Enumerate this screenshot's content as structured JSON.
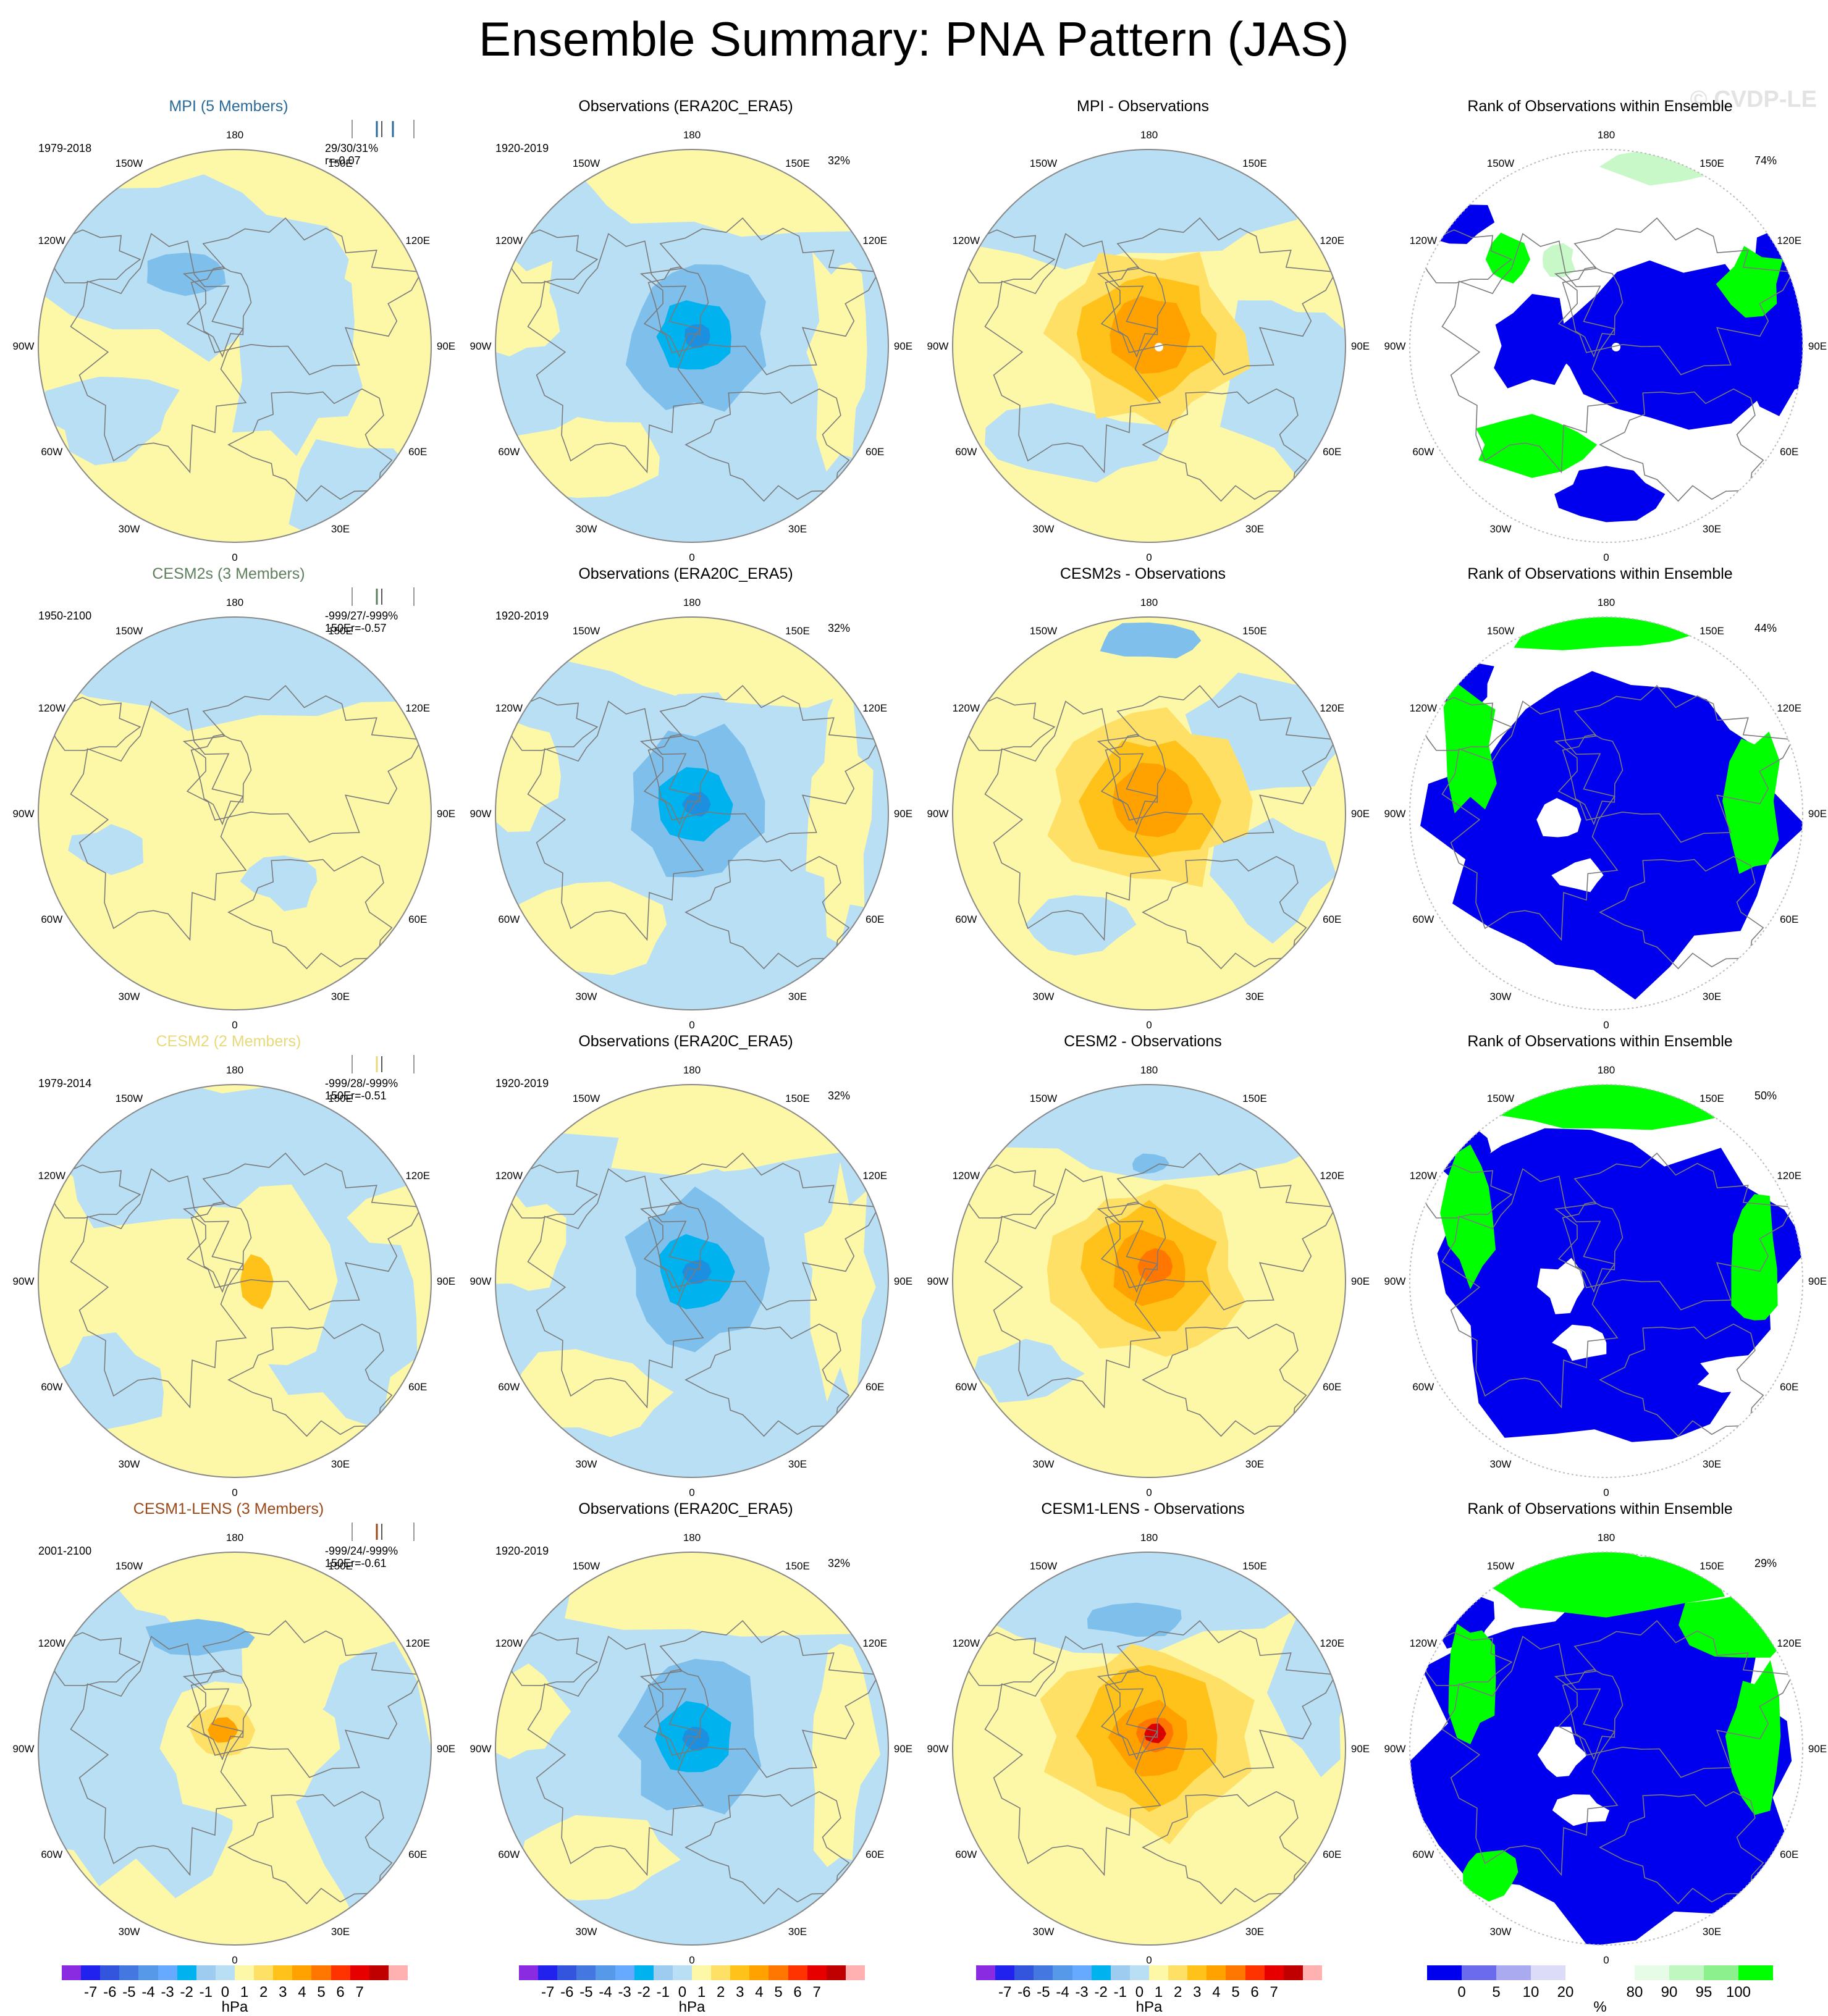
{
  "title": "Ensemble Summary: PNA Pattern (JAS)",
  "watermark": "© CVDP-LE",
  "lon_labels": [
    {
      "lon": "180",
      "text": "180"
    },
    {
      "lon": "150W",
      "text": "150W"
    },
    {
      "lon": "120W",
      "text": "120W"
    },
    {
      "lon": "90W",
      "text": "90W"
    },
    {
      "lon": "60W",
      "text": "60W"
    },
    {
      "lon": "30W",
      "text": "30W"
    },
    {
      "lon": "0",
      "text": "0"
    },
    {
      "lon": "30E",
      "text": "30E"
    },
    {
      "lon": "60E",
      "text": "60E"
    },
    {
      "lon": "90E",
      "text": "90E"
    },
    {
      "lon": "120E",
      "text": "120E"
    },
    {
      "lon": "150E",
      "text": "150E"
    }
  ],
  "colorbars": {
    "hpa": {
      "colors": [
        "#8a2be2",
        "#2222ee",
        "#3355dd",
        "#4477e0",
        "#5599e8",
        "#66aaff",
        "#00b2ee",
        "#9ecbf0",
        "#b9dff5",
        "#fdf7a8",
        "#ffe066",
        "#ffc21a",
        "#ffa200",
        "#ff7700",
        "#ff3300",
        "#e60000",
        "#c00000",
        "#ffb0b0"
      ],
      "ticks": [
        "-7",
        "-6",
        "-5",
        "-4",
        "-3",
        "-2",
        "-1",
        "0",
        "1",
        "2",
        "3",
        "4",
        "5",
        "6",
        "7"
      ],
      "unit": "hPa"
    },
    "pct": {
      "colors": [
        "#0000ee",
        "#6b6bee",
        "#aaaaf0",
        "#dcdcf8",
        "#ffffff",
        "#ffffff",
        "#e6fce6",
        "#c0f7c0",
        "#8cf08c",
        "#00ff00"
      ],
      "ticks": [
        "0",
        "5",
        "10",
        "20",
        "80",
        "90",
        "95",
        "100"
      ],
      "unit": "%"
    }
  },
  "rows": [
    {
      "model": {
        "title": "MPI (5 Members)",
        "title_color": "#2a6a9a",
        "period": "1979-2018",
        "stats": "29/30/31%",
        "corr": "r=-0.07"
      },
      "obs": {
        "title": "Observations (ERA20C_ERA5)",
        "period": "1920-2019",
        "pct": "32%"
      },
      "diff": {
        "title": "MPI - Observations"
      },
      "rank": {
        "title": "Rank of Observations within Ensemble",
        "pct": "74%"
      }
    },
    {
      "model": {
        "title": "CESM2s (3 Members)",
        "title_color": "#5f7f5f",
        "period": "1950-2100",
        "stats": "-999/27/-999%",
        "corr": "150Er=-0.57"
      },
      "obs": {
        "title": "Observations (ERA20C_ERA5)",
        "period": "1920-2019",
        "pct": "32%"
      },
      "diff": {
        "title": "CESM2s - Observations"
      },
      "rank": {
        "title": "Rank of Observations within Ensemble",
        "pct": "44%"
      }
    },
    {
      "model": {
        "title": "CESM2 (2 Members)",
        "title_color": "#e8d97a",
        "period": "1979-2014",
        "stats": "-999/28/-999%",
        "corr": "150Er=-0.51"
      },
      "obs": {
        "title": "Observations (ERA20C_ERA5)",
        "period": "1920-2019",
        "pct": "32%"
      },
      "diff": {
        "title": "CESM2 - Observations"
      },
      "rank": {
        "title": "Rank of Observations within Ensemble",
        "pct": "50%"
      }
    },
    {
      "model": {
        "title": "CESM1-LENS (3 Members)",
        "title_color": "#9a4a1a",
        "period": "2001-2100",
        "stats": "-999/24/-999%",
        "corr": "150Er=-0.61"
      },
      "obs": {
        "title": "Observations (ERA20C_ERA5)",
        "period": "1920-2019",
        "pct": "32%"
      },
      "diff": {
        "title": "CESM1-LENS - Observations"
      },
      "rank": {
        "title": "Rank of Observations within Ensemble",
        "pct": "29%"
      }
    }
  ],
  "chart_data": {
    "type": "heatmap",
    "projection": "north polar stereographic",
    "description_of_fields": "sea level pressure anomaly pattern (hPa) and percentile rank (%)",
    "contour_levels_hpa": [
      -7,
      -6,
      -5,
      -4,
      -3,
      -2,
      -1,
      0,
      1,
      2,
      3,
      4,
      5,
      6,
      7
    ],
    "rank_levels_pct": [
      0,
      5,
      10,
      20,
      80,
      90,
      95,
      100
    ],
    "obs_center_min_hpa": -3,
    "diff_center_max_hpa": [
      3,
      3,
      4,
      5
    ],
    "model_center_max_hpa": [
      null,
      null,
      2,
      3
    ]
  }
}
